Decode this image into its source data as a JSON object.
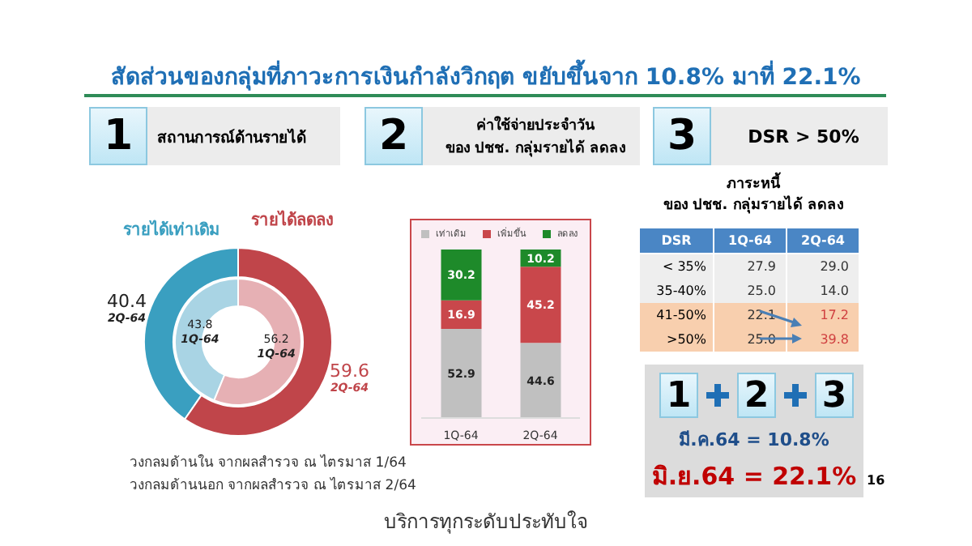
{
  "chart_data": [
    {
      "type": "other",
      "title": "สัดส่วนของกลุ่มที่ภาวะการเงินกำลังวิกฤต ขยับขึ้นจาก 10.8%  มาที่ 22.1%",
      "annotations": [
        "1",
        "สถานการณ์ด้านรายได้",
        "2",
        "ค่าใช้จ่ายประจำวัน\nของ ปชช. กลุ่มรายได้ ลดลง",
        "3",
        "DSR > 50%",
        "1",
        "2",
        "3",
        "มี.ค.64 = 10.8%",
        "มิ.ย.64 = 22.1%",
        "บริการทุกระดับประทับใจ",
        "16"
      ]
    },
    {
      "type": "donut",
      "categories": [
        "รายได้เท่าเดิม",
        "รายได้ลดลง"
      ],
      "data_labels": true,
      "series": [
        {
          "name": "1Q-64",
          "colors": [
            "#a9d4e4",
            "#e6b0b4"
          ],
          "values": [
            43.8,
            56.2
          ]
        },
        {
          "name": "2Q-64",
          "colors": [
            "#3a9fc0",
            "#c0454a"
          ],
          "values": [
            40.4,
            59.6
          ]
        }
      ],
      "annotations": [
        "วงกลมด้านใน จากผลสำรวจ ณ ไตรมาส 1/64",
        "วงกลมด้านนอก จากผลสำรวจ ณ ไตรมาส 2/64"
      ]
    },
    {
      "type": "bar",
      "stacked": true,
      "categories": [
        "1Q-64",
        "2Q-64"
      ],
      "data_labels": true,
      "legend": "top",
      "series": [
        {
          "name": "เท่าเดิม",
          "color": "#c0c0c0",
          "values": [
            52.9,
            44.6
          ]
        },
        {
          "name": "เพิ่มขึ้น",
          "color": "#c9474b",
          "values": [
            16.9,
            45.2
          ]
        },
        {
          "name": "ลดลง",
          "color": "#1e8a2a",
          "values": [
            30.2,
            10.2
          ]
        }
      ]
    },
    {
      "type": "other",
      "title": "ภาระหนี้\nของ ปชช. กลุ่มรายได้ ลดลง",
      "annotations": [
        "DSR",
        "1Q-64",
        "2Q-64",
        "< 35%",
        "27.9",
        "29.0",
        "35-40%",
        "25.0",
        "14.0",
        "41-50%",
        "22.1",
        "17.2",
        ">50%",
        "25.0",
        "39.8"
      ]
    }
  ]
}
